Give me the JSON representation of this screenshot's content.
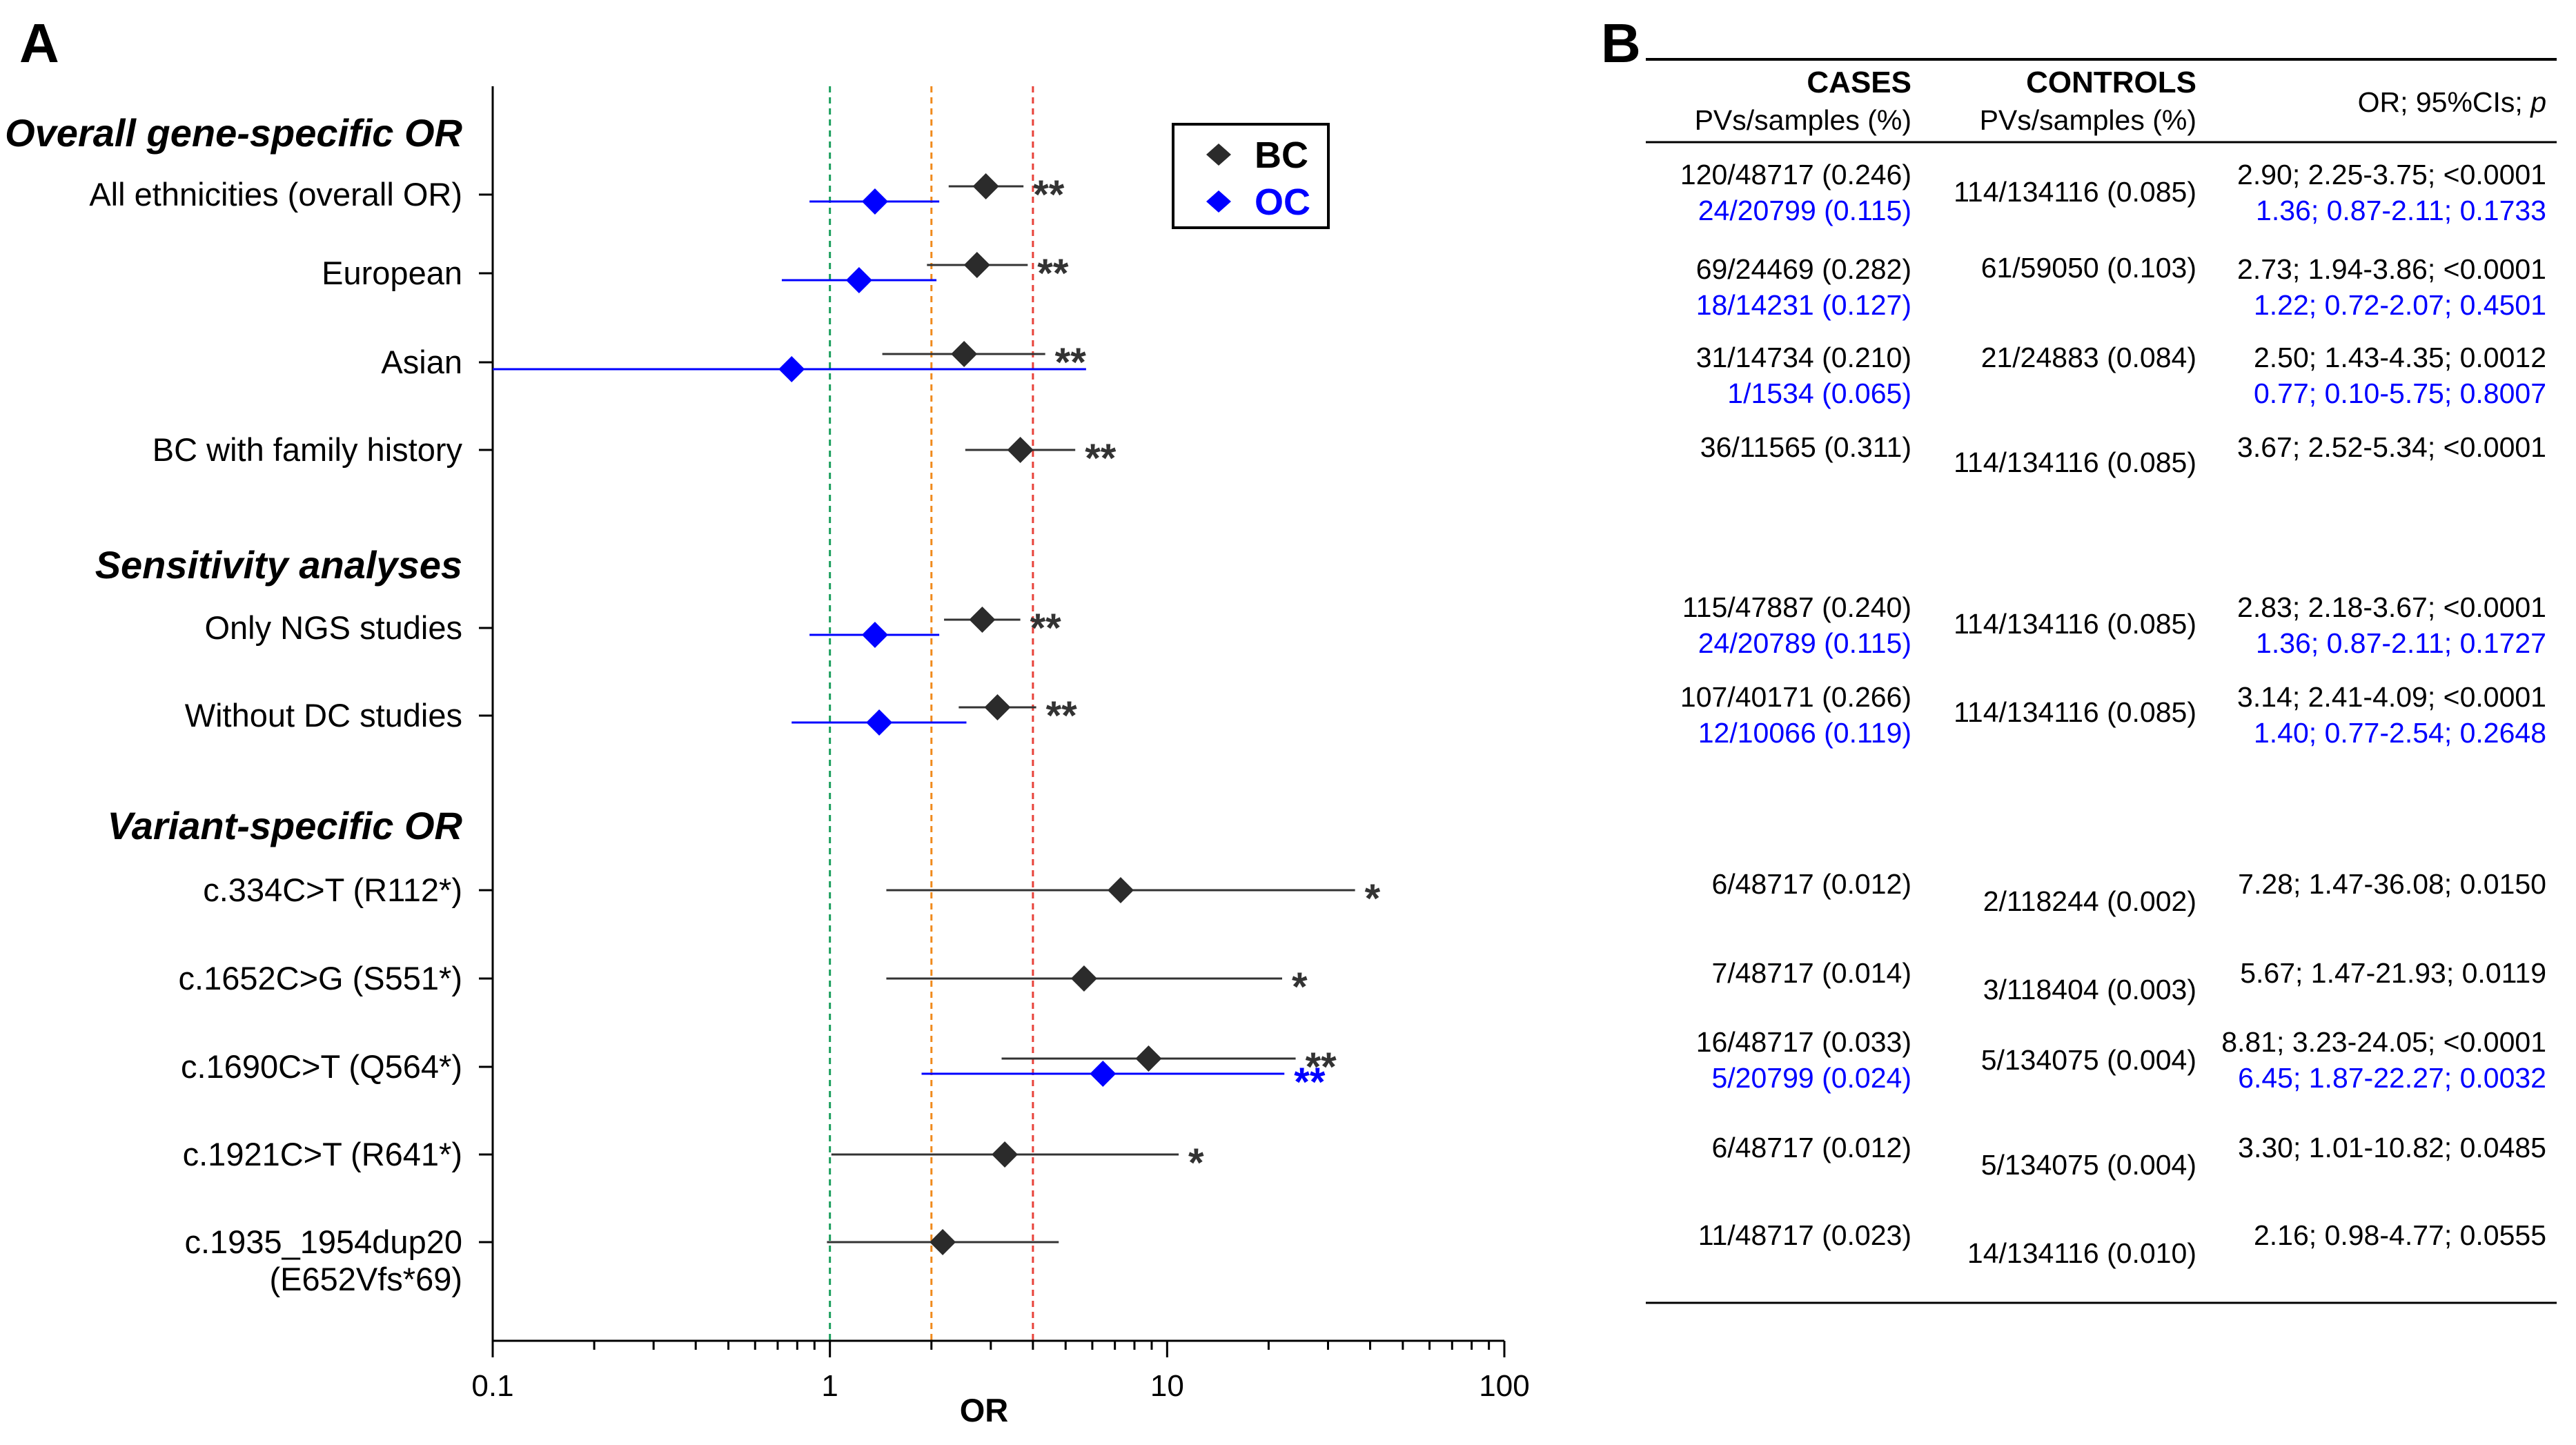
{
  "panel_a_letter": "A",
  "panel_b_letter": "B",
  "chart_data": {
    "type": "forest",
    "xscale": "log",
    "xlim": [
      0.1,
      100
    ],
    "xlabel": "OR",
    "xticks": [
      0.1,
      1,
      10,
      100
    ],
    "xtick_labels": [
      "0.1",
      "1",
      "10",
      "100"
    ],
    "reference_lines": [
      {
        "x": 1,
        "color": "#1a9e5c"
      },
      {
        "x": 2,
        "color": "#f08a1c"
      },
      {
        "x": 4,
        "color": "#e8423a"
      }
    ],
    "legend": [
      {
        "name": "BC",
        "color": "#2b2b2b"
      },
      {
        "name": "OC",
        "color": "#0000ff"
      }
    ],
    "sections": [
      {
        "key": "overall",
        "title": "Overall gene-specific OR"
      },
      {
        "key": "sens",
        "title": "Sensitivity analyses"
      },
      {
        "key": "variant",
        "title": "Variant-specific OR"
      }
    ],
    "rows": [
      {
        "label": "All ethnicities (overall OR)",
        "bc": {
          "or": 2.9,
          "lo": 2.25,
          "hi": 3.75,
          "sig": "**"
        },
        "oc": {
          "or": 1.36,
          "lo": 0.87,
          "hi": 2.11
        }
      },
      {
        "label": "European",
        "bc": {
          "or": 2.73,
          "lo": 1.94,
          "hi": 3.86,
          "sig": "**"
        },
        "oc": {
          "or": 1.22,
          "lo": 0.72,
          "hi": 2.07
        }
      },
      {
        "label": "Asian",
        "bc": {
          "or": 2.5,
          "lo": 1.43,
          "hi": 4.35,
          "sig": "**"
        },
        "oc": {
          "or": 0.77,
          "lo": 0.1,
          "hi": 5.75
        }
      },
      {
        "label": "BC with family history",
        "bc": {
          "or": 3.67,
          "lo": 2.52,
          "hi": 5.34,
          "sig": "**"
        }
      },
      {
        "label": "Only NGS studies",
        "bc": {
          "or": 2.83,
          "lo": 2.18,
          "hi": 3.67,
          "sig": "**"
        },
        "oc": {
          "or": 1.36,
          "lo": 0.87,
          "hi": 2.11
        }
      },
      {
        "label": "Without DC studies",
        "bc": {
          "or": 3.14,
          "lo": 2.41,
          "hi": 4.09,
          "sig": "**"
        },
        "oc": {
          "or": 1.4,
          "lo": 0.77,
          "hi": 2.54
        }
      },
      {
        "label": "c.334C>T (R112*)",
        "bc": {
          "or": 7.28,
          "lo": 1.47,
          "hi": 36.08,
          "sig": "*"
        }
      },
      {
        "label": "c.1652C>G (S551*)",
        "bc": {
          "or": 5.67,
          "lo": 1.47,
          "hi": 21.93,
          "sig": "*"
        }
      },
      {
        "label": "c.1690C>T (Q564*)",
        "bc": {
          "or": 8.81,
          "lo": 3.23,
          "hi": 24.05,
          "sig": "**"
        },
        "oc": {
          "or": 6.45,
          "lo": 1.87,
          "hi": 22.27,
          "sig": "**"
        }
      },
      {
        "label": "c.1921C>T (R641*)",
        "bc": {
          "or": 3.3,
          "lo": 1.01,
          "hi": 10.82,
          "sig": "*"
        }
      },
      {
        "label": "c.1935_1954dup20",
        "label2": "(E652Vfs*69)",
        "bc": {
          "or": 2.16,
          "lo": 0.98,
          "hi": 4.77,
          "sig": ""
        }
      }
    ]
  },
  "table": {
    "cases_header": "CASES",
    "controls_header": "CONTROLS",
    "cases_sub": "PVs/samples (%)",
    "controls_sub": "PVs/samples (%)",
    "or_header_prefix": "OR; 95%CIs; ",
    "or_header_p": "p",
    "rows": [
      {
        "cases_bc": "120/48717 (0.246)",
        "cases_oc": "24/20799 (0.115)",
        "controls": "114/134116 (0.085)",
        "or_bc": "2.90; 2.25-3.75; <0.0001",
        "or_oc": "1.36; 0.87-2.11; 0.1733"
      },
      {
        "cases_bc": "69/24469 (0.282)",
        "cases_oc": "18/14231 (0.127)",
        "controls": "61/59050 (0.103)",
        "or_bc": "2.73; 1.94-3.86; <0.0001",
        "or_oc": "1.22; 0.72-2.07; 0.4501"
      },
      {
        "cases_bc": "31/14734 (0.210)",
        "cases_oc": "1/1534 (0.065)",
        "controls": "21/24883 (0.084)",
        "or_bc": "2.50; 1.43-4.35; 0.0012",
        "or_oc": "0.77; 0.10-5.75; 0.8007"
      },
      {
        "cases_bc": "36/11565 (0.311)",
        "controls": "114/134116 (0.085)",
        "or_bc": "3.67; 2.52-5.34; <0.0001"
      },
      {
        "cases_bc": "115/47887 (0.240)",
        "cases_oc": "24/20789 (0.115)",
        "controls": "114/134116 (0.085)",
        "or_bc": "2.83; 2.18-3.67; <0.0001",
        "or_oc": "1.36; 0.87-2.11; 0.1727"
      },
      {
        "cases_bc": "107/40171 (0.266)",
        "cases_oc": "12/10066 (0.119)",
        "controls": "114/134116 (0.085)",
        "or_bc": "3.14; 2.41-4.09; <0.0001",
        "or_oc": "1.40; 0.77-2.54; 0.2648"
      },
      {
        "cases_bc": "6/48717 (0.012)",
        "controls": "2/118244 (0.002)",
        "or_bc": "7.28; 1.47-36.08; 0.0150"
      },
      {
        "cases_bc": "7/48717 (0.014)",
        "controls": "3/118404 (0.003)",
        "or_bc": "5.67; 1.47-21.93; 0.0119"
      },
      {
        "cases_bc": "16/48717 (0.033)",
        "cases_oc": "5/20799 (0.024)",
        "controls": "5/134075 (0.004)",
        "or_bc": "8.81; 3.23-24.05; <0.0001",
        "or_oc": "6.45; 1.87-22.27; 0.0032"
      },
      {
        "cases_bc": "6/48717 (0.012)",
        "controls": "5/134075 (0.004)",
        "or_bc": "3.30; 1.01-10.82; 0.0485"
      },
      {
        "cases_bc": "11/48717 (0.023)",
        "controls": "14/134116 (0.010)",
        "or_bc": "2.16; 0.98-4.77; 0.0555"
      }
    ]
  }
}
